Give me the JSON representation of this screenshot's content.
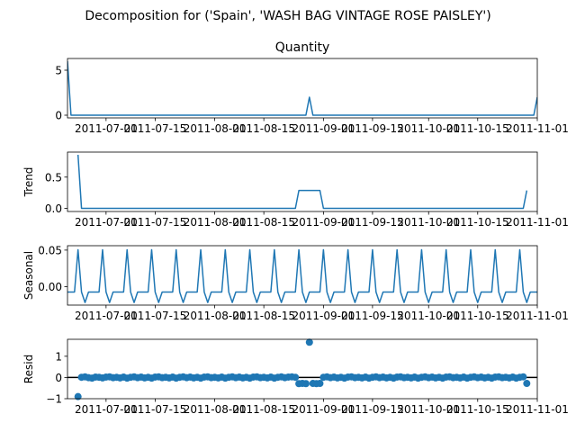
{
  "title": "Decomposition for ('Spain', 'WASH BAG VINTAGE ROSE PAISLEY')",
  "x_tick_labels": [
    "2011-07-01",
    "2011-07-15",
    "2011-08-01",
    "2011-08-15",
    "2011-09-01",
    "2011-09-15",
    "2011-10-01",
    "2011-10-15",
    "2011-11-01"
  ],
  "colors": {
    "line": "#1f77b4",
    "zero_line": "#000000"
  },
  "chart_data": [
    {
      "type": "line",
      "title": "Quantity",
      "ylabel": "",
      "x_start": "2011-06-20",
      "x_end": "2011-11-01",
      "ylim": [
        -0.3,
        6.3
      ],
      "yticks": [
        0,
        5
      ],
      "ytick_labels": [
        "0",
        "5"
      ],
      "points": [
        {
          "x": "2011-06-20",
          "y": 6
        },
        {
          "x": "2011-06-21",
          "y": 0
        },
        {
          "x": "2011-08-27",
          "y": 0
        },
        {
          "x": "2011-08-28",
          "y": 2
        },
        {
          "x": "2011-08-29",
          "y": 0
        },
        {
          "x": "2011-10-31",
          "y": 0
        },
        {
          "x": "2011-11-01",
          "y": 2
        }
      ]
    },
    {
      "type": "line",
      "title": "",
      "ylabel": "Trend",
      "x_start": "2011-06-20",
      "x_end": "2011-11-01",
      "ylim": [
        -0.05,
        0.9
      ],
      "yticks": [
        0,
        0.5
      ],
      "ytick_labels": [
        "0.0",
        "0.5"
      ],
      "points": [
        {
          "x": "2011-06-23",
          "y": 0.857
        },
        {
          "x": "2011-06-24",
          "y": 0
        },
        {
          "x": "2011-08-24",
          "y": 0
        },
        {
          "x": "2011-08-25",
          "y": 0.286
        },
        {
          "x": "2011-08-31",
          "y": 0.286
        },
        {
          "x": "2011-09-01",
          "y": 0
        },
        {
          "x": "2011-10-28",
          "y": 0
        },
        {
          "x": "2011-10-29",
          "y": 0.286
        }
      ]
    },
    {
      "type": "line",
      "title": "",
      "ylabel": "Seasonal",
      "x_start": "2011-06-20",
      "x_end": "2011-11-01",
      "ylim": [
        -0.025,
        0.056
      ],
      "yticks": [
        0,
        0.05
      ],
      "ytick_labels": [
        "0.00",
        "0.05"
      ],
      "pattern_start": "2011-06-20",
      "weekly_pattern": [
        -0.0072,
        -0.0072,
        -0.0072,
        0.0505,
        -0.0072,
        -0.0215,
        -0.0072
      ]
    },
    {
      "type": "scatter",
      "title": "",
      "ylabel": "Resid",
      "x_start": "2011-06-20",
      "x_end": "2011-11-01",
      "ylim": [
        -1,
        1.8
      ],
      "yticks": [
        -1,
        0,
        1
      ],
      "ytick_labels": [
        "−1",
        "0",
        "1"
      ],
      "baseline": 0,
      "points": [
        {
          "x": "2011-06-23",
          "y": -0.9
        },
        {
          "x": "2011-06-24",
          "y": 0.01
        },
        {
          "x": "2011-06-25",
          "y": 0.03
        },
        {
          "x": "2011-06-26",
          "y": -0.01
        },
        {
          "x": "2011-06-27",
          "y": -0.03
        },
        {
          "x": "2011-06-28",
          "y": 0.02
        },
        {
          "x": "2011-06-29",
          "y": 0.01
        },
        {
          "x": "2011-06-30",
          "y": -0.02
        },
        {
          "x": "2011-07-01",
          "y": 0.02
        },
        {
          "x": "2011-07-02",
          "y": 0.03
        },
        {
          "x": "2011-07-03",
          "y": -0.01
        },
        {
          "x": "2011-07-04",
          "y": 0.01
        },
        {
          "x": "2011-07-05",
          "y": -0.02
        },
        {
          "x": "2011-07-06",
          "y": 0.02
        },
        {
          "x": "2011-07-07",
          "y": -0.03
        },
        {
          "x": "2011-07-08",
          "y": 0.01
        },
        {
          "x": "2011-07-09",
          "y": 0.03
        },
        {
          "x": "2011-07-10",
          "y": -0.01
        },
        {
          "x": "2011-07-11",
          "y": 0.02
        },
        {
          "x": "2011-07-12",
          "y": -0.02
        },
        {
          "x": "2011-07-13",
          "y": 0.01
        },
        {
          "x": "2011-07-14",
          "y": -0.03
        },
        {
          "x": "2011-07-15",
          "y": 0.02
        },
        {
          "x": "2011-07-16",
          "y": 0.03
        },
        {
          "x": "2011-07-17",
          "y": -0.01
        },
        {
          "x": "2011-07-18",
          "y": 0.01
        },
        {
          "x": "2011-07-19",
          "y": -0.02
        },
        {
          "x": "2011-07-20",
          "y": 0.02
        },
        {
          "x": "2011-07-21",
          "y": -0.03
        },
        {
          "x": "2011-07-22",
          "y": 0.01
        },
        {
          "x": "2011-07-23",
          "y": 0.03
        },
        {
          "x": "2011-07-24",
          "y": -0.01
        },
        {
          "x": "2011-07-25",
          "y": 0.02
        },
        {
          "x": "2011-07-26",
          "y": -0.02
        },
        {
          "x": "2011-07-27",
          "y": 0.01
        },
        {
          "x": "2011-07-28",
          "y": -0.03
        },
        {
          "x": "2011-07-29",
          "y": 0.02
        },
        {
          "x": "2011-07-30",
          "y": 0.03
        },
        {
          "x": "2011-07-31",
          "y": -0.01
        },
        {
          "x": "2011-08-01",
          "y": 0.01
        },
        {
          "x": "2011-08-02",
          "y": -0.02
        },
        {
          "x": "2011-08-03",
          "y": 0.02
        },
        {
          "x": "2011-08-04",
          "y": -0.03
        },
        {
          "x": "2011-08-05",
          "y": 0.01
        },
        {
          "x": "2011-08-06",
          "y": 0.03
        },
        {
          "x": "2011-08-07",
          "y": -0.01
        },
        {
          "x": "2011-08-08",
          "y": 0.02
        },
        {
          "x": "2011-08-09",
          "y": -0.02
        },
        {
          "x": "2011-08-10",
          "y": 0.01
        },
        {
          "x": "2011-08-11",
          "y": -0.03
        },
        {
          "x": "2011-08-12",
          "y": 0.02
        },
        {
          "x": "2011-08-13",
          "y": 0.03
        },
        {
          "x": "2011-08-14",
          "y": -0.01
        },
        {
          "x": "2011-08-15",
          "y": 0.01
        },
        {
          "x": "2011-08-16",
          "y": -0.02
        },
        {
          "x": "2011-08-17",
          "y": 0.02
        },
        {
          "x": "2011-08-18",
          "y": -0.03
        },
        {
          "x": "2011-08-19",
          "y": 0.01
        },
        {
          "x": "2011-08-20",
          "y": 0.03
        },
        {
          "x": "2011-08-21",
          "y": -0.01
        },
        {
          "x": "2011-08-22",
          "y": 0.02
        },
        {
          "x": "2011-08-23",
          "y": 0.03
        },
        {
          "x": "2011-08-24",
          "y": 0.01
        },
        {
          "x": "2011-08-25",
          "y": -0.29
        },
        {
          "x": "2011-08-26",
          "y": -0.28
        },
        {
          "x": "2011-08-27",
          "y": -0.29
        },
        {
          "x": "2011-08-28",
          "y": 1.66
        },
        {
          "x": "2011-08-29",
          "y": -0.28
        },
        {
          "x": "2011-08-30",
          "y": -0.29
        },
        {
          "x": "2011-08-31",
          "y": -0.28
        },
        {
          "x": "2011-09-01",
          "y": 0.01
        },
        {
          "x": "2011-09-02",
          "y": 0.03
        },
        {
          "x": "2011-09-03",
          "y": -0.01
        },
        {
          "x": "2011-09-04",
          "y": 0.02
        },
        {
          "x": "2011-09-05",
          "y": -0.02
        },
        {
          "x": "2011-09-06",
          "y": 0.01
        },
        {
          "x": "2011-09-07",
          "y": -0.03
        },
        {
          "x": "2011-09-08",
          "y": 0.02
        },
        {
          "x": "2011-09-09",
          "y": 0.03
        },
        {
          "x": "2011-09-10",
          "y": -0.01
        },
        {
          "x": "2011-09-11",
          "y": 0.01
        },
        {
          "x": "2011-09-12",
          "y": -0.02
        },
        {
          "x": "2011-09-13",
          "y": 0.02
        },
        {
          "x": "2011-09-14",
          "y": -0.03
        },
        {
          "x": "2011-09-15",
          "y": 0.01
        },
        {
          "x": "2011-09-16",
          "y": 0.03
        },
        {
          "x": "2011-09-17",
          "y": -0.01
        },
        {
          "x": "2011-09-18",
          "y": 0.02
        },
        {
          "x": "2011-09-19",
          "y": -0.02
        },
        {
          "x": "2011-09-20",
          "y": 0.01
        },
        {
          "x": "2011-09-21",
          "y": -0.03
        },
        {
          "x": "2011-09-22",
          "y": 0.02
        },
        {
          "x": "2011-09-23",
          "y": 0.03
        },
        {
          "x": "2011-09-24",
          "y": -0.01
        },
        {
          "x": "2011-09-25",
          "y": 0.01
        },
        {
          "x": "2011-09-26",
          "y": -0.02
        },
        {
          "x": "2011-09-27",
          "y": 0.02
        },
        {
          "x": "2011-09-28",
          "y": -0.03
        },
        {
          "x": "2011-09-29",
          "y": 0.01
        },
        {
          "x": "2011-09-30",
          "y": 0.03
        },
        {
          "x": "2011-10-01",
          "y": -0.01
        },
        {
          "x": "2011-10-02",
          "y": 0.02
        },
        {
          "x": "2011-10-03",
          "y": -0.02
        },
        {
          "x": "2011-10-04",
          "y": 0.01
        },
        {
          "x": "2011-10-05",
          "y": -0.03
        },
        {
          "x": "2011-10-06",
          "y": 0.02
        },
        {
          "x": "2011-10-07",
          "y": 0.03
        },
        {
          "x": "2011-10-08",
          "y": -0.01
        },
        {
          "x": "2011-10-09",
          "y": 0.01
        },
        {
          "x": "2011-10-10",
          "y": -0.02
        },
        {
          "x": "2011-10-11",
          "y": 0.02
        },
        {
          "x": "2011-10-12",
          "y": -0.03
        },
        {
          "x": "2011-10-13",
          "y": 0.01
        },
        {
          "x": "2011-10-14",
          "y": 0.03
        },
        {
          "x": "2011-10-15",
          "y": -0.01
        },
        {
          "x": "2011-10-16",
          "y": 0.02
        },
        {
          "x": "2011-10-17",
          "y": -0.02
        },
        {
          "x": "2011-10-18",
          "y": 0.01
        },
        {
          "x": "2011-10-19",
          "y": -0.03
        },
        {
          "x": "2011-10-20",
          "y": 0.02
        },
        {
          "x": "2011-10-21",
          "y": 0.03
        },
        {
          "x": "2011-10-22",
          "y": -0.01
        },
        {
          "x": "2011-10-23",
          "y": 0.01
        },
        {
          "x": "2011-10-24",
          "y": -0.02
        },
        {
          "x": "2011-10-25",
          "y": 0.02
        },
        {
          "x": "2011-10-26",
          "y": -0.03
        },
        {
          "x": "2011-10-27",
          "y": 0.01
        },
        {
          "x": "2011-10-28",
          "y": 0.03
        },
        {
          "x": "2011-10-29",
          "y": -0.28
        }
      ]
    }
  ]
}
